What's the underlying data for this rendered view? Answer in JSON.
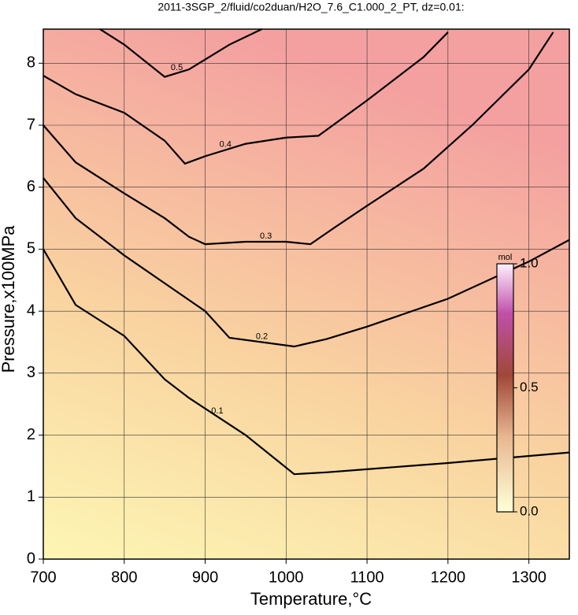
{
  "chart_data": {
    "type": "contour",
    "title": "2011-3SGP_2/fluid/co2duan/H2O_7.6_C1.000_2_PT, dz=0.01:",
    "x_label": "Temperature,°C",
    "y_label": "Pressure,x100MPa",
    "xlim": [
      700,
      1350
    ],
    "ylim": [
      0,
      8.55
    ],
    "xticks": [
      700,
      800,
      900,
      1000,
      1100,
      1200,
      1300
    ],
    "yticks": [
      0,
      1,
      2,
      3,
      4,
      5,
      6,
      7,
      8
    ],
    "grid": true,
    "colorbar": {
      "label": "mol",
      "lim": [
        0,
        1
      ],
      "ticks": [
        {
          "value": 0,
          "label": "0.0"
        },
        {
          "value": 0.5,
          "label": "0.5"
        },
        {
          "value": 1,
          "label": "1.0"
        }
      ]
    },
    "series": [
      {
        "level": 0.1,
        "color": "#000000",
        "x": [
          700,
          740,
          800,
          850,
          880,
          950,
          1010,
          1050,
          1100,
          1200,
          1350
        ],
        "y": [
          5.0,
          4.1,
          3.6,
          2.9,
          2.6,
          2.0,
          1.37,
          1.4,
          1.45,
          1.55,
          1.72
        ]
      },
      {
        "level": 0.2,
        "color": "#000000",
        "x": [
          700,
          740,
          800,
          850,
          900,
          930,
          1010,
          1050,
          1100,
          1200,
          1300,
          1350
        ],
        "y": [
          6.15,
          5.5,
          4.9,
          4.45,
          4.0,
          3.57,
          3.43,
          3.55,
          3.75,
          4.2,
          4.8,
          5.15
        ]
      },
      {
        "level": 0.3,
        "color": "#000000",
        "x": [
          700,
          740,
          800,
          850,
          880,
          900,
          950,
          1000,
          1030,
          1060,
          1100,
          1170,
          1230,
          1300,
          1330
        ],
        "y": [
          7.0,
          6.4,
          5.9,
          5.5,
          5.2,
          5.08,
          5.12,
          5.12,
          5.08,
          5.35,
          5.7,
          6.3,
          7.0,
          7.9,
          8.5
        ]
      },
      {
        "level": 0.4,
        "color": "#000000",
        "x": [
          700,
          740,
          800,
          850,
          875,
          900,
          950,
          1000,
          1040,
          1100,
          1170,
          1200
        ],
        "y": [
          7.8,
          7.5,
          7.2,
          6.75,
          6.38,
          6.5,
          6.7,
          6.8,
          6.83,
          7.4,
          8.1,
          8.5
        ]
      },
      {
        "level": 0.5,
        "color": "#000000",
        "x": [
          770,
          800,
          850,
          880,
          930,
          970
        ],
        "y": [
          8.55,
          8.3,
          7.78,
          7.9,
          8.3,
          8.55
        ]
      }
    ]
  }
}
